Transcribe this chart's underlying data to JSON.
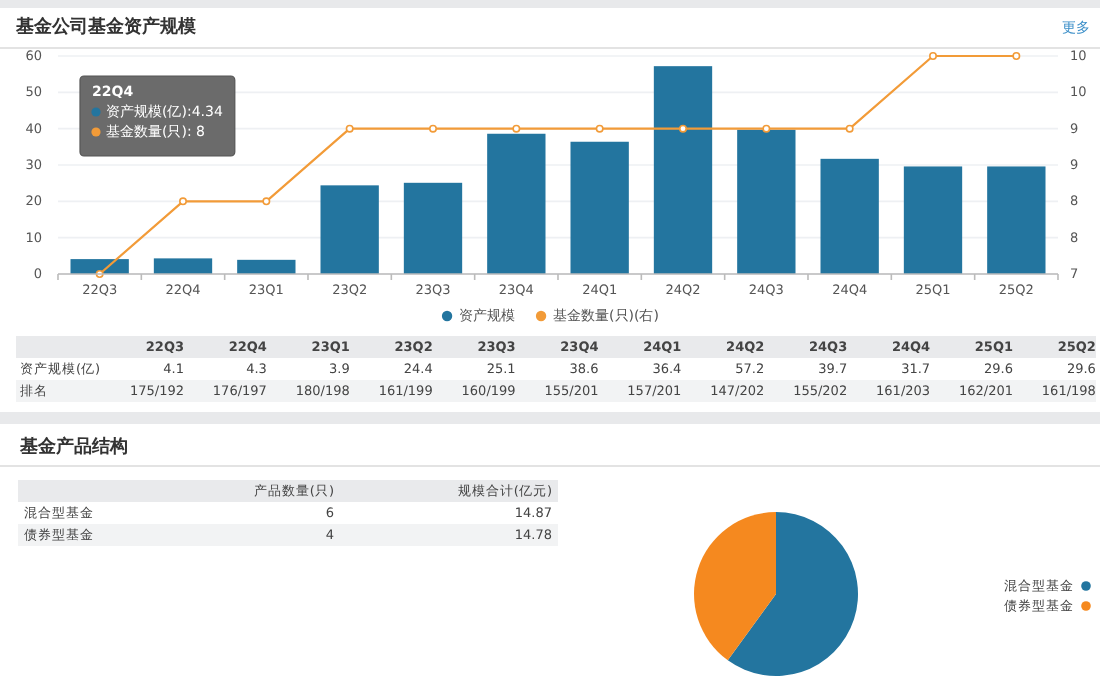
{
  "chart_data": [
    {
      "type": "bar",
      "title": "基金公司基金资产规模",
      "categories": [
        "22Q3",
        "22Q4",
        "23Q1",
        "23Q2",
        "23Q3",
        "23Q4",
        "24Q1",
        "24Q2",
        "24Q3",
        "24Q4",
        "25Q1",
        "25Q2"
      ],
      "series": [
        {
          "name": "资产规模",
          "type": "bar",
          "color": "#23759f",
          "values": [
            4.1,
            4.3,
            3.9,
            24.4,
            25.1,
            38.6,
            36.4,
            57.2,
            39.7,
            31.7,
            29.6,
            29.6
          ]
        },
        {
          "name": "基金数量(只)(右)",
          "type": "line",
          "axis": "y2",
          "color": "#f29b38",
          "values": [
            7,
            8,
            8,
            9,
            9,
            9,
            9,
            9,
            9,
            9,
            10,
            10
          ]
        }
      ],
      "ylim": [
        0,
        60
      ],
      "yticks": [
        0,
        10,
        20,
        30,
        40,
        50,
        60
      ],
      "y2lim": [
        7,
        10
      ],
      "y2ticks": [
        {
          "value": 7,
          "label": "7"
        },
        {
          "value": 7.5,
          "label": "8"
        },
        {
          "value": 8,
          "label": "8"
        },
        {
          "value": 8.5,
          "label": "9"
        },
        {
          "value": 9,
          "label": "9"
        },
        {
          "value": 9.5,
          "label": "10"
        },
        {
          "value": 10,
          "label": "10"
        }
      ],
      "grid": "y",
      "legend": "bottom",
      "marker": "circle",
      "line_style": "solid",
      "annotations": [
        "更多",
        "22Q4",
        "资产规模(亿):4.34",
        "基金数量(只): 8"
      ]
    },
    {
      "type": "other",
      "categories": [
        "22Q3",
        "22Q4",
        "23Q1",
        "23Q2",
        "23Q3",
        "23Q4",
        "24Q1",
        "24Q2",
        "24Q3",
        "24Q4",
        "25Q1",
        "25Q2"
      ],
      "y_categories": [
        "资产规模(亿)",
        "排名"
      ],
      "cell_labels": [
        [
          "4.1",
          "4.3",
          "3.9",
          "24.4",
          "25.1",
          "38.6",
          "36.4",
          "57.2",
          "39.7",
          "31.7",
          "29.6",
          "29.6"
        ],
        [
          "175/192",
          "176/197",
          "180/198",
          "161/199",
          "160/199",
          "155/201",
          "157/201",
          "147/202",
          "155/202",
          "161/203",
          "162/201",
          "161/198"
        ]
      ]
    },
    {
      "type": "other",
      "title": "基金产品结构",
      "categories": [
        "产品数量(只)",
        "规模合计(亿元)"
      ],
      "y_categories": [
        "混合型基金",
        "债券型基金"
      ],
      "cell_labels": [
        [
          "6",
          "14.87"
        ],
        [
          "4",
          "14.78"
        ]
      ]
    },
    {
      "type": "pie",
      "categories": [
        "混合型基金",
        "债券型基金"
      ],
      "values": [
        60,
        40
      ],
      "colors": [
        "#23759f",
        "#f5891f"
      ],
      "legend": "right"
    }
  ]
}
